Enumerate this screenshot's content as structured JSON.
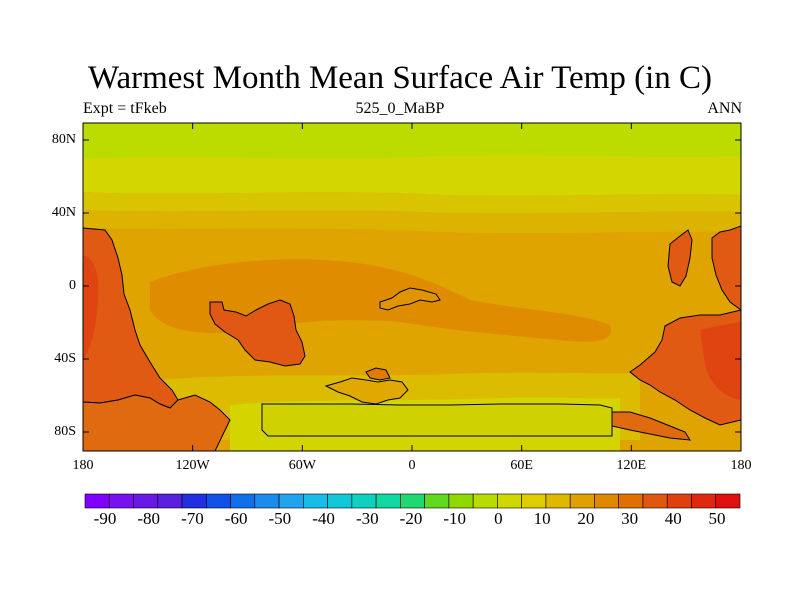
{
  "title": "Warmest Month Mean Surface Air Temp (in C)",
  "subtitle_left": "Expt = tFkeb",
  "subtitle_center": "525_0_MaBP",
  "subtitle_right": "ANN",
  "lat_labels": [
    "80N",
    "40N",
    "0",
    "40S",
    "80S"
  ],
  "lon_labels": [
    "180",
    "120W",
    "60W",
    "0",
    "60E",
    "120E",
    "180"
  ],
  "colorbar": {
    "labels": [
      "-90",
      "-80",
      "-70",
      "-60",
      "-50",
      "-40",
      "-30",
      "-20",
      "-10",
      "0",
      "10",
      "20",
      "30",
      "40",
      "50"
    ],
    "colors": [
      "#8000ff",
      "#7810f0",
      "#6a18e6",
      "#5a20e0",
      "#2030e0",
      "#1050e6",
      "#1070ea",
      "#1a8cee",
      "#20a4f0",
      "#18bce8",
      "#10c8d8",
      "#10d0c0",
      "#10d8a0",
      "#20d870",
      "#60d820",
      "#90d800",
      "#b8dc00",
      "#d0d800",
      "#dccc00",
      "#e0b800",
      "#e0a000",
      "#e08800",
      "#e07000",
      "#e05810",
      "#e04010",
      "#e02810",
      "#e01010"
    ]
  },
  "colors": {
    "band_80n": "#bcdc00",
    "band_60n": "#d4d600",
    "band_40n": "#d8c400",
    "band_20n": "#e0ac00",
    "land_hot": "#e05a14",
    "land_hottest": "#e04410",
    "coast_line": "#000000"
  }
}
